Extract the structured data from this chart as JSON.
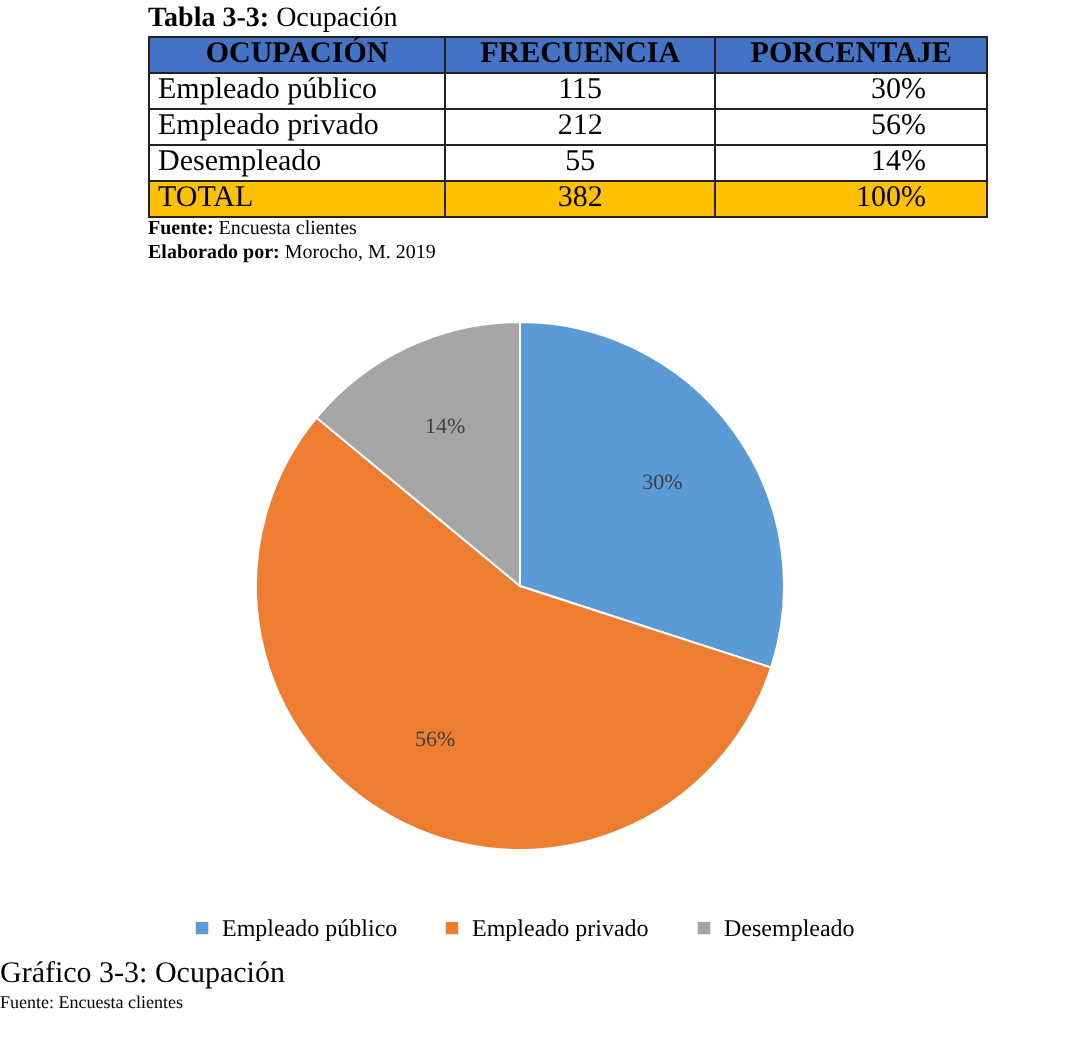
{
  "chart_data": [
    {
      "type": "other",
      "title": "Tabla 3-3: Ocupación",
      "xlabel": "OCUPACIÓN",
      "categories": [
        "Empleado público",
        "Empleado privado",
        "Desempleado",
        "TOTAL"
      ],
      "annotations": [
        "FRECUENCIA",
        "PORCENTAJE",
        "115",
        "30%",
        "212",
        "56%",
        "55",
        "14%",
        "382",
        "100%",
        "Fuente: Encuesta clientes",
        "Elaborado por: Morocho, M. 2019"
      ]
    },
    {
      "type": "pie",
      "title": "Gráfico 3-3: Ocupación",
      "categories": [
        "Empleado público",
        "Empleado privado",
        "Desempleado"
      ],
      "values": [
        30,
        56,
        14
      ],
      "colors": [
        "#5b9bd5",
        "#ed7d31",
        "#a5a5a5"
      ],
      "value_labels": [
        "30%",
        "56%",
        "14%"
      ],
      "legend": "bottom",
      "annotations": [
        "Fuente: Encuesta clientes"
      ]
    }
  ]
}
